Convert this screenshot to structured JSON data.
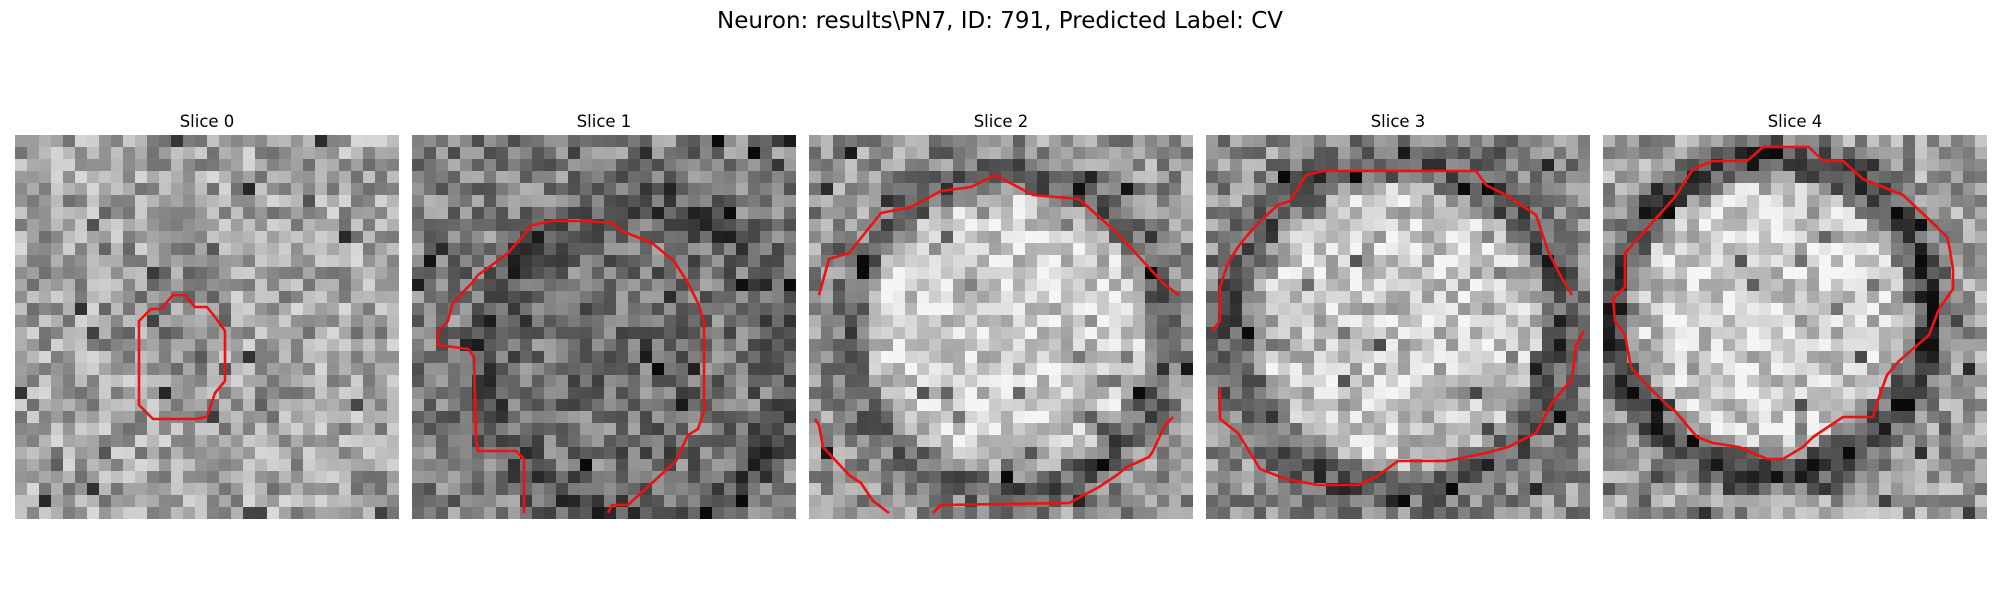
{
  "figure": {
    "title": "Neuron: results\\PN7, ID: 791, Predicted Label: CV"
  },
  "slices": [
    {
      "title": "Slice 0"
    },
    {
      "title": "Slice 1"
    },
    {
      "title": "Slice 2"
    },
    {
      "title": "Slice 3"
    },
    {
      "title": "Slice 4"
    }
  ],
  "contour_color": "#ee1111"
}
